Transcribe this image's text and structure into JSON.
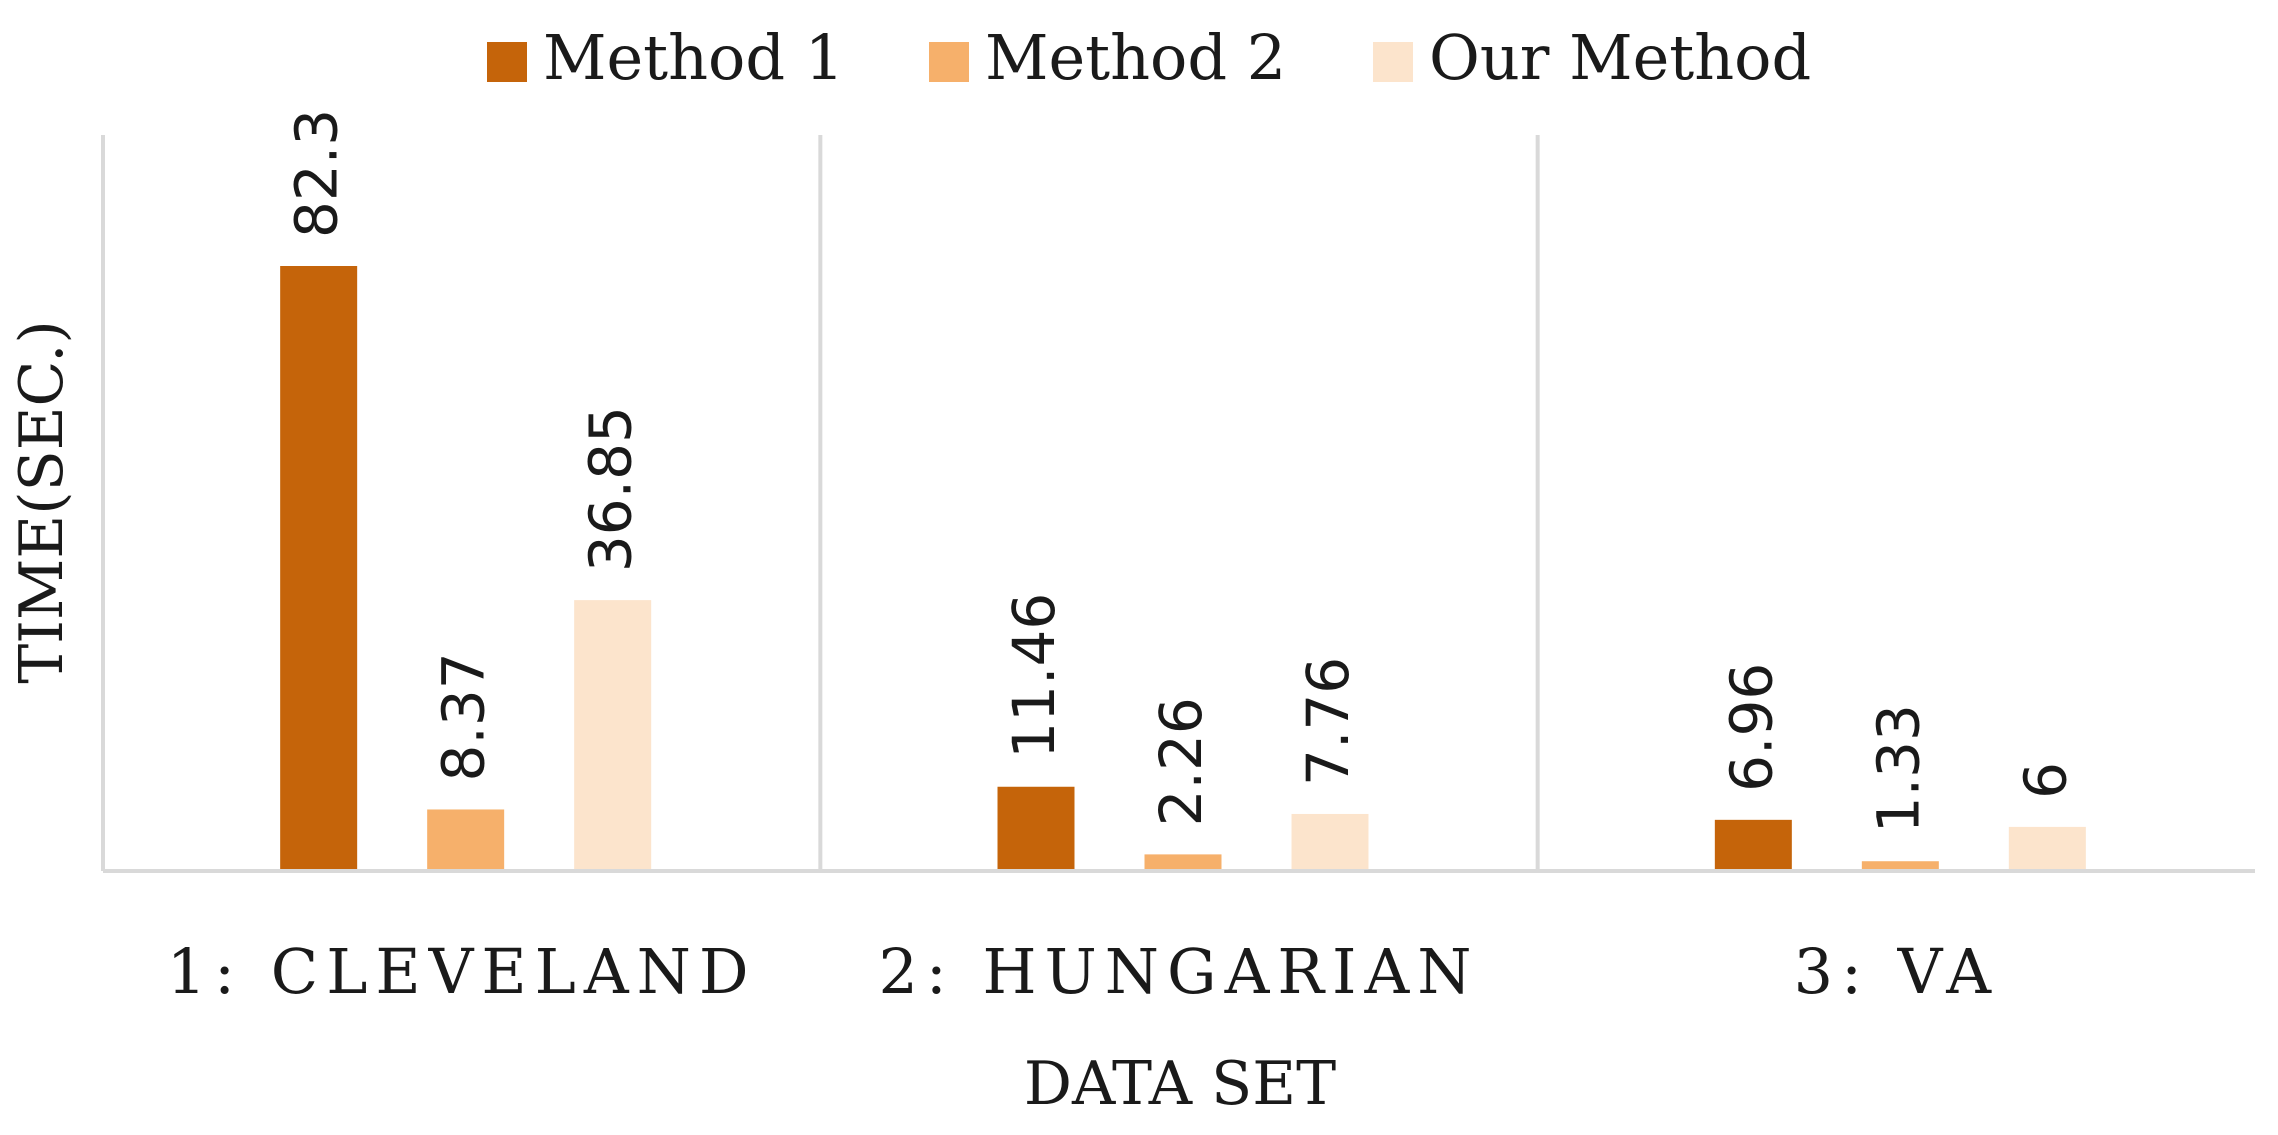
{
  "chart_data": {
    "type": "bar",
    "categories": [
      "1: CLEVELAND",
      "2: HUNGARIAN",
      "3: VA"
    ],
    "series": [
      {
        "name": "Method 1",
        "values": [
          82.3,
          11.46,
          6.96
        ],
        "labels": [
          "82.3",
          "11.46",
          "6.96"
        ],
        "color": "#c5640a"
      },
      {
        "name": "Method 2",
        "values": [
          8.37,
          2.26,
          1.33
        ],
        "labels": [
          "8.37",
          "2.26",
          "1.33"
        ],
        "color": "#f6b06b"
      },
      {
        "name": "Our Method",
        "values": [
          36.85,
          7.76,
          6
        ],
        "labels": [
          "36.85",
          "7.76",
          "6"
        ],
        "color": "#fce4cc"
      }
    ],
    "xlabel": "DATA SET",
    "ylabel": "TIME(SEC.)",
    "ylim": [
      0,
      100
    ],
    "grid": false,
    "legend_position": "top",
    "category_separators": true,
    "axis_color": "#d9d9d9"
  }
}
